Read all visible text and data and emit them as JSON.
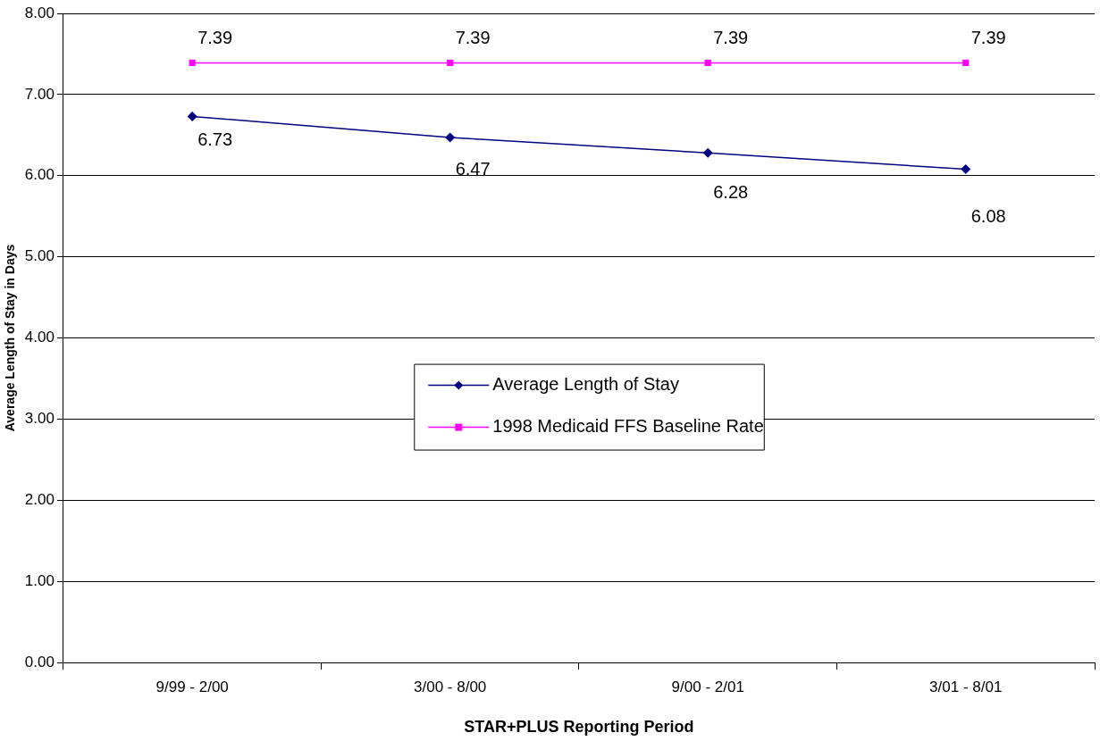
{
  "chart_data": {
    "type": "line",
    "xlabel": "STAR+PLUS Reporting Period",
    "ylabel": "Average Length of Stay in Days",
    "categories": [
      "9/99 - 2/00",
      "3/00 - 8/00",
      "9/00 - 2/01",
      "3/01 - 8/01"
    ],
    "series": [
      {
        "name": "Average Length of Stay",
        "color": "#000080",
        "marker": "diamond",
        "values": [
          6.73,
          6.47,
          6.28,
          6.08
        ]
      },
      {
        "name": "1998 Medicaid FFS Baseline Rate",
        "color": "#ff00ff",
        "marker": "square",
        "values": [
          7.39,
          7.39,
          7.39,
          7.39
        ]
      }
    ],
    "ylim": [
      0,
      8
    ],
    "yticks": [
      {
        "value": 0,
        "label": "0.00"
      },
      {
        "value": 1,
        "label": "1.00"
      },
      {
        "value": 2,
        "label": "2.00"
      },
      {
        "value": 3,
        "label": "3.00"
      },
      {
        "value": 4,
        "label": "4.00"
      },
      {
        "value": 5,
        "label": "5.00"
      },
      {
        "value": 6,
        "label": "6.00"
      },
      {
        "value": 7,
        "label": "7.00"
      },
      {
        "value": 8,
        "label": "8.00"
      }
    ],
    "grid": "y",
    "legend": "center",
    "data_labels": true
  }
}
